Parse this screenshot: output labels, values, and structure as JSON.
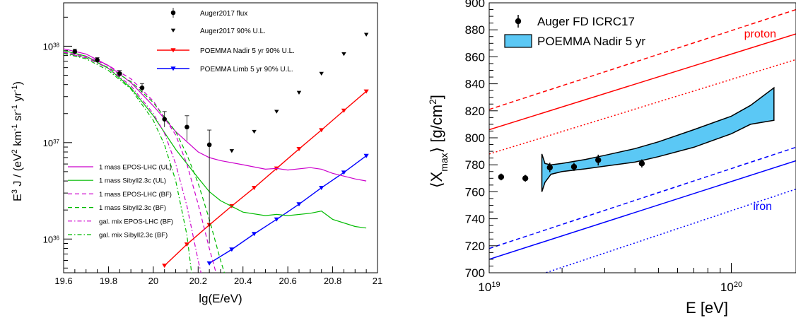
{
  "chart_data": [
    {
      "type": "line",
      "xlabel": "lg(E/eV)",
      "ylabel": "E3 J / (eV2 km-1 sr-1 yr-1)",
      "xlim": [
        19.6,
        21
      ],
      "ylim_log10": [
        35.65,
        38.45
      ],
      "y_scale": "log",
      "grid": false,
      "x_ticks": [
        "19.6",
        "19.8",
        "20",
        "20.2",
        "20.4",
        "20.6",
        "20.8",
        "21"
      ],
      "y_ticks": [
        {
          "label": "10",
          "exp": "38",
          "value": 1e+38
        },
        {
          "label": "10",
          "exp": "37",
          "value": 1e+37
        },
        {
          "label": "10",
          "exp": "36",
          "value": 1e+36
        }
      ],
      "legend_top": [
        {
          "name": "Auger2017 flux",
          "marker": "circle",
          "color": "#000000"
        },
        {
          "name": "Auger2017 90% U.L.",
          "marker": "triangle-down",
          "color": "#000000"
        },
        {
          "name": "POEMMA Nadir 5 yr 90% U.L.",
          "marker": "triangle-down-line",
          "color": "#ff0000"
        },
        {
          "name": "POEMMA Limb 5 yr 90% U.L.",
          "marker": "triangle-down-line",
          "color": "#0000ff"
        }
      ],
      "legend_bottom": [
        {
          "name": "1 mass EPOS-LHC (UL)",
          "color": "#cc00cc",
          "dash": "solid"
        },
        {
          "name": "1 mass Sibyll2.3c (UL)",
          "color": "#00bb00",
          "dash": "solid"
        },
        {
          "name": "1 mass EPOS-LHC (BF)",
          "color": "#cc00cc",
          "dash": "dashed"
        },
        {
          "name": "1 mass Sibyll2.3c (BF)",
          "color": "#00bb00",
          "dash": "dashed"
        },
        {
          "name": "gal. mix EPOS-LHC (BF)",
          "color": "#cc00cc",
          "dash": "dashdot"
        },
        {
          "name": "gal. mix Sibyll2.3c (BF)",
          "color": "#00bb00",
          "dash": "dashdot"
        }
      ],
      "auger_flux": [
        {
          "x": 19.65,
          "y": 8.8e+37,
          "ylo": 8.4e+37,
          "yhi": 9.3e+37
        },
        {
          "x": 19.75,
          "y": 7.2e+37,
          "ylo": 6.8e+37,
          "yhi": 7.6e+37
        },
        {
          "x": 19.85,
          "y": 5.2e+37,
          "ylo": 4.8e+37,
          "yhi": 5.6e+37
        },
        {
          "x": 19.95,
          "y": 3.7e+37,
          "ylo": 3.3e+37,
          "yhi": 4.1e+37
        },
        {
          "x": 20.05,
          "y": 1.75e+37,
          "ylo": 1.45e+37,
          "yhi": 2.1e+37
        },
        {
          "x": 20.15,
          "y": 1.45e+37,
          "ylo": 1.05e+37,
          "yhi": 1.9e+37
        },
        {
          "x": 20.25,
          "y": 9.5e+36,
          "ylo": 9e+35,
          "yhi": 1.35e+37
        }
      ],
      "auger_ul": [
        {
          "x": 20.35,
          "y": 8.2e+36
        },
        {
          "x": 20.45,
          "y": 1.3e+37
        },
        {
          "x": 20.55,
          "y": 2.1e+37
        },
        {
          "x": 20.65,
          "y": 3.3e+37
        },
        {
          "x": 20.75,
          "y": 5.2e+37
        },
        {
          "x": 20.85,
          "y": 8.3e+37
        },
        {
          "x": 20.95,
          "y": 1.32e+38
        }
      ],
      "series": [
        {
          "name": "POEMMA Nadir 5 yr 90% U.L.",
          "color": "#ff0000",
          "style": "solid",
          "marker": "triangle-down",
          "x": [
            20.05,
            20.15,
            20.25,
            20.35,
            20.45,
            20.55,
            20.65,
            20.75,
            20.85,
            20.95
          ],
          "y": [
            5.3e+35,
            8.8e+35,
            1.4e+36,
            2.2e+36,
            3.4e+36,
            5.4e+36,
            8.6e+36,
            1.35e+37,
            2.15e+37,
            3.4e+37
          ]
        },
        {
          "name": "POEMMA Limb 5 yr 90% U.L.",
          "color": "#0000ff",
          "style": "solid",
          "marker": "triangle-down",
          "x": [
            20.25,
            20.35,
            20.45,
            20.55,
            20.65,
            20.75,
            20.85,
            20.95
          ],
          "y": [
            5.6e+35,
            7.8e+35,
            1.13e+36,
            1.6e+36,
            2.3e+36,
            3.4e+36,
            4.9e+36,
            7.3e+36
          ]
        },
        {
          "name": "1 mass EPOS-LHC (UL)",
          "color": "#cc00cc",
          "style": "solid",
          "x": [
            19.6,
            19.7,
            19.8,
            19.9,
            20.0,
            20.1,
            20.2,
            20.25,
            20.3,
            20.4,
            20.5,
            20.55,
            20.6,
            20.7,
            20.75,
            20.8,
            20.9,
            20.95
          ],
          "y": [
            9.4e+37,
            8.3e+37,
            6.3e+37,
            4.2e+37,
            2.4e+37,
            1.3e+37,
            8e+36,
            7e+36,
            6.5e+36,
            5.9e+36,
            5.3e+36,
            5.4e+36,
            5.2e+36,
            5.5e+36,
            5.3e+36,
            4.8e+36,
            4.2e+36,
            4e+36
          ]
        },
        {
          "name": "1 mass Sibyll2.3c (UL)",
          "color": "#00bb00",
          "style": "solid",
          "x": [
            19.6,
            19.7,
            19.8,
            19.9,
            20.0,
            20.1,
            20.2,
            20.25,
            20.3,
            20.4,
            20.5,
            20.55,
            20.6,
            20.7,
            20.75,
            20.8,
            20.9,
            20.95
          ],
          "y": [
            9e+37,
            7.9e+37,
            5.9e+37,
            3.7e+37,
            1.9e+37,
            8.5e+36,
            4.3e+36,
            3.1e+36,
            2.5e+36,
            1.9e+36,
            1.75e+36,
            1.8e+36,
            1.75e+36,
            1.85e+36,
            1.95e+36,
            1.6e+36,
            1.35e+36,
            1.3e+36
          ]
        },
        {
          "name": "1 mass EPOS-LHC (BF)",
          "color": "#cc00cc",
          "style": "dashed",
          "x": [
            19.6,
            19.7,
            19.8,
            19.9,
            20.0,
            20.1,
            20.15,
            20.2,
            20.25,
            20.3
          ],
          "y": [
            8.7e+37,
            7.8e+37,
            6.3e+37,
            4.6e+37,
            2.7e+37,
            1.2e+37,
            6e+36,
            2.3e+36,
            8e+35,
            3e+35
          ]
        },
        {
          "name": "1 mass Sibyll2.3c (BF)",
          "color": "#00bb00",
          "style": "dashed",
          "x": [
            19.6,
            19.7,
            19.8,
            19.9,
            20.0,
            20.1,
            20.15,
            20.2,
            20.25,
            20.3,
            20.34
          ],
          "y": [
            8.5e+37,
            7.6e+37,
            6e+37,
            4.3e+37,
            2.6e+37,
            1.3e+37,
            7.5e+36,
            3.8e+36,
            1.6e+36,
            6e+35,
            3e+35
          ]
        },
        {
          "name": "gal. mix EPOS-LHC (BF)",
          "color": "#cc00cc",
          "style": "dashdot",
          "x": [
            19.6,
            19.7,
            19.8,
            19.9,
            20.0,
            20.05,
            20.1,
            20.15,
            20.2,
            20.23
          ],
          "y": [
            8.6e+37,
            7.6e+37,
            5.9e+37,
            3.9e+37,
            2e+37,
            1.25e+37,
            6e+36,
            2.2e+36,
            6e+35,
            3e+35
          ]
        },
        {
          "name": "gal. mix Sibyll2.3c (BF)",
          "color": "#00bb00",
          "style": "dashdot",
          "x": [
            19.6,
            19.7,
            19.8,
            19.9,
            20.0,
            20.05,
            20.1,
            20.15,
            20.18
          ],
          "y": [
            8.4e+37,
            7.4e+37,
            5.6e+37,
            3.6e+37,
            1.7e+37,
            9.5e+36,
            4e+36,
            1.1e+36,
            3e+35
          ]
        }
      ]
    },
    {
      "type": "line",
      "xlabel": "E [eV]",
      "ylabel": "⟨X",
      "ylabel_sub": "max",
      "ylabel_tail": "⟩ [g/cm",
      "ylabel_sup": "2",
      "ylabel_end": "]",
      "x_scale": "log",
      "xlim": [
        1e+19,
        1.85e+20
      ],
      "ylim": [
        700,
        900
      ],
      "grid": false,
      "x_ticks": [
        {
          "label": "10",
          "exp": "19",
          "value": 1e+19
        },
        {
          "label": "10",
          "exp": "20",
          "value": 1e+20
        }
      ],
      "y_ticks": [
        "700",
        "720",
        "740",
        "760",
        "780",
        "800",
        "820",
        "840",
        "860",
        "880",
        "900"
      ],
      "legend": [
        {
          "name": "Auger FD ICRC17",
          "marker": "circle",
          "color": "#000000"
        },
        {
          "name": "POEMMA Nadir 5 yr",
          "marker": "band",
          "color": "#5bc8f5"
        }
      ],
      "annotations": [
        {
          "text": "proton",
          "color": "#ff0000"
        },
        {
          "text": "iron",
          "color": "#0000ff"
        }
      ],
      "auger_points": [
        {
          "x": 1.12e+19,
          "y": 771,
          "err": 2.5
        },
        {
          "x": 1.41e+19,
          "y": 770,
          "err": 2.5
        },
        {
          "x": 1.78e+19,
          "y": 778,
          "err": 3.5
        },
        {
          "x": 2.24e+19,
          "y": 778.5,
          "err": 3
        },
        {
          "x": 2.82e+19,
          "y": 783.5,
          "err": 4
        },
        {
          "x": 4.27e+19,
          "y": 781,
          "err": 3
        }
      ],
      "series": [
        {
          "name": "proton",
          "color": "#ff0000",
          "style": "dashed",
          "y_at_xmin": 821,
          "y_at_xmax": 895
        },
        {
          "name": "proton",
          "color": "#ff0000",
          "style": "solid",
          "y_at_xmin": 806,
          "y_at_xmax": 877
        },
        {
          "name": "proton",
          "color": "#ff0000",
          "style": "dotted",
          "y_at_xmin": 788,
          "y_at_xmax": 858
        },
        {
          "name": "iron",
          "color": "#0000ff",
          "style": "dashed",
          "y_at_xmin": 718,
          "y_at_xmax": 793
        },
        {
          "name": "iron",
          "color": "#0000ff",
          "style": "solid",
          "y_at_xmin": 710,
          "y_at_xmax": 783
        },
        {
          "name": "iron",
          "color": "#0000ff",
          "style": "dotted",
          "y_at_xmin": 686,
          "y_at_xmax": 762
        }
      ],
      "band": {
        "name": "POEMMA Nadir 5 yr",
        "color": "#5bc8f5",
        "x": [
          1.65e+19,
          1.7e+19,
          1.8e+19,
          2e+19,
          2.5e+19,
          3e+19,
          4e+19,
          5e+19,
          7e+19,
          1e+20,
          1.2e+20,
          1.5e+20
        ],
        "upper": [
          788,
          781,
          780,
          781,
          784,
          787,
          792,
          797,
          806,
          816,
          824,
          837
        ],
        "lower": [
          760,
          767,
          773,
          775,
          777,
          779,
          782,
          786,
          793,
          803,
          810,
          813
        ]
      }
    }
  ]
}
